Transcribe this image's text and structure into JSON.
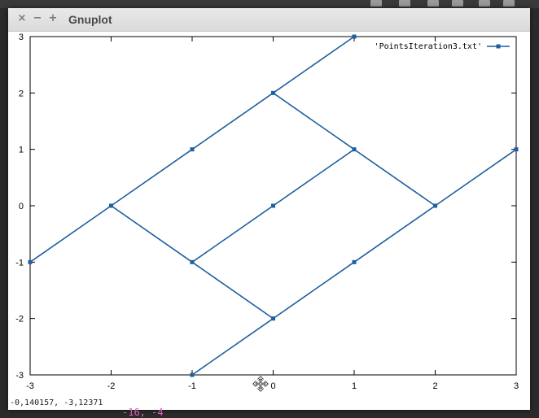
{
  "window": {
    "title": "Gnuplot",
    "close_glyph": "×",
    "minimize_glyph": "−",
    "maximize_glyph": "+"
  },
  "status": {
    "coordinates": "-0,140157, -3,12371"
  },
  "terminal": {
    "text": "-16, -4"
  },
  "cursor": {
    "icon": "move-cursor-icon"
  },
  "chart_data": {
    "type": "line",
    "xlim": [
      -3,
      3
    ],
    "ylim": [
      -3,
      3
    ],
    "xticks": [
      -3,
      -2,
      -1,
      0,
      1,
      2,
      3
    ],
    "yticks": [
      -3,
      -2,
      -1,
      0,
      1,
      2,
      3
    ],
    "xtick_labels": [
      "-3",
      "-2",
      "-1",
      "0",
      "1",
      "2",
      "3"
    ],
    "ytick_labels": [
      "-3",
      "-2",
      "-1",
      "0",
      "1",
      "2",
      "3"
    ],
    "grid": false,
    "legend_position": "top-right",
    "color": "#1f5f9f",
    "series": [
      {
        "name": "'PointsIteration3.txt'",
        "segments": [
          [
            [
              -3,
              -1
            ],
            [
              -2,
              0
            ],
            [
              -1,
              1
            ],
            [
              0,
              2
            ],
            [
              1,
              3
            ]
          ],
          [
            [
              -2,
              0
            ],
            [
              -1,
              -1
            ],
            [
              0,
              -2
            ],
            [
              1,
              -1
            ],
            [
              2,
              0
            ],
            [
              3,
              1
            ]
          ],
          [
            [
              -1,
              -1
            ],
            [
              0,
              0
            ],
            [
              1,
              1
            ],
            [
              2,
              0
            ]
          ],
          [
            [
              0,
              2
            ],
            [
              1,
              1
            ]
          ],
          [
            [
              -1,
              -3
            ],
            [
              0,
              -2
            ]
          ]
        ]
      }
    ]
  }
}
